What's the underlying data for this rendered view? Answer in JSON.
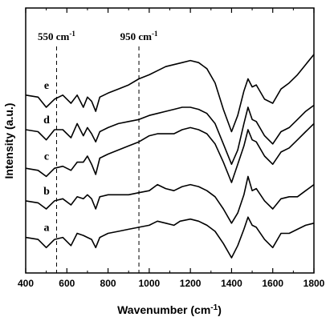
{
  "chart_data": {
    "type": "line",
    "xlabel": "Wavenumber (cm",
    "xlabel_sup": "-1",
    "xlabel_end": ")",
    "ylabel": "Intensity (a.u.)",
    "xlim": [
      400,
      1800
    ],
    "ylim": [
      0,
      100
    ],
    "x_ticks": [
      400,
      600,
      800,
      1000,
      1200,
      1400,
      1600,
      1800
    ],
    "y_ticks_visible": false,
    "grid": false,
    "annotations": [
      {
        "text": "550 cm",
        "sup": "-1",
        "x": 550,
        "style": "dashed-vertical"
      },
      {
        "text": "950 cm",
        "sup": "-1",
        "x": 950,
        "style": "dashed-vertical"
      }
    ],
    "series": [
      {
        "name": "a",
        "points": [
          [
            400,
            10
          ],
          [
            460,
            9
          ],
          [
            500,
            5
          ],
          [
            540,
            9
          ],
          [
            580,
            10
          ],
          [
            620,
            6
          ],
          [
            650,
            12
          ],
          [
            680,
            11
          ],
          [
            700,
            10
          ],
          [
            720,
            9
          ],
          [
            740,
            5
          ],
          [
            760,
            10
          ],
          [
            800,
            12
          ],
          [
            850,
            13
          ],
          [
            900,
            14
          ],
          [
            950,
            15
          ],
          [
            1000,
            16
          ],
          [
            1020,
            17
          ],
          [
            1040,
            18
          ],
          [
            1080,
            17
          ],
          [
            1120,
            16
          ],
          [
            1150,
            18
          ],
          [
            1200,
            19
          ],
          [
            1240,
            18
          ],
          [
            1280,
            16
          ],
          [
            1320,
            13
          ],
          [
            1360,
            7
          ],
          [
            1400,
            0
          ],
          [
            1430,
            6
          ],
          [
            1460,
            14
          ],
          [
            1480,
            20
          ],
          [
            1500,
            16
          ],
          [
            1520,
            15
          ],
          [
            1560,
            9
          ],
          [
            1600,
            5
          ],
          [
            1640,
            12
          ],
          [
            1680,
            12
          ],
          [
            1720,
            14
          ],
          [
            1760,
            16
          ],
          [
            1800,
            17
          ]
        ]
      },
      {
        "name": "b",
        "points": [
          [
            400,
            28
          ],
          [
            460,
            27
          ],
          [
            500,
            24
          ],
          [
            540,
            28
          ],
          [
            580,
            29
          ],
          [
            620,
            26
          ],
          [
            650,
            30
          ],
          [
            680,
            29
          ],
          [
            700,
            31
          ],
          [
            720,
            29
          ],
          [
            740,
            24
          ],
          [
            760,
            30
          ],
          [
            800,
            31
          ],
          [
            850,
            31
          ],
          [
            900,
            31
          ],
          [
            950,
            32
          ],
          [
            1000,
            33
          ],
          [
            1040,
            36
          ],
          [
            1080,
            34
          ],
          [
            1120,
            33
          ],
          [
            1160,
            35
          ],
          [
            1200,
            36
          ],
          [
            1240,
            35
          ],
          [
            1280,
            33
          ],
          [
            1320,
            30
          ],
          [
            1360,
            24
          ],
          [
            1400,
            17
          ],
          [
            1430,
            22
          ],
          [
            1460,
            31
          ],
          [
            1480,
            40
          ],
          [
            1500,
            33
          ],
          [
            1520,
            34
          ],
          [
            1560,
            28
          ],
          [
            1600,
            24
          ],
          [
            1640,
            29
          ],
          [
            1680,
            30
          ],
          [
            1720,
            30
          ],
          [
            1760,
            33
          ],
          [
            1800,
            36
          ]
        ]
      },
      {
        "name": "c",
        "points": [
          [
            400,
            44
          ],
          [
            460,
            43
          ],
          [
            500,
            40
          ],
          [
            540,
            44
          ],
          [
            580,
            45
          ],
          [
            620,
            43
          ],
          [
            650,
            47
          ],
          [
            680,
            47
          ],
          [
            700,
            50
          ],
          [
            720,
            46
          ],
          [
            740,
            41
          ],
          [
            760,
            49
          ],
          [
            800,
            51
          ],
          [
            850,
            53
          ],
          [
            900,
            55
          ],
          [
            950,
            57
          ],
          [
            1000,
            60
          ],
          [
            1040,
            61
          ],
          [
            1080,
            61
          ],
          [
            1120,
            61
          ],
          [
            1160,
            63
          ],
          [
            1200,
            64
          ],
          [
            1240,
            63
          ],
          [
            1280,
            61
          ],
          [
            1320,
            56
          ],
          [
            1360,
            47
          ],
          [
            1400,
            37
          ],
          [
            1430,
            46
          ],
          [
            1460,
            55
          ],
          [
            1480,
            63
          ],
          [
            1500,
            58
          ],
          [
            1520,
            57
          ],
          [
            1560,
            50
          ],
          [
            1600,
            46
          ],
          [
            1640,
            52
          ],
          [
            1680,
            54
          ],
          [
            1720,
            58
          ],
          [
            1760,
            62
          ],
          [
            1800,
            66
          ]
        ]
      },
      {
        "name": "d",
        "points": [
          [
            400,
            63
          ],
          [
            460,
            62
          ],
          [
            500,
            58
          ],
          [
            540,
            63
          ],
          [
            580,
            63
          ],
          [
            620,
            59
          ],
          [
            650,
            66
          ],
          [
            680,
            60
          ],
          [
            700,
            64
          ],
          [
            720,
            61
          ],
          [
            740,
            57
          ],
          [
            760,
            62
          ],
          [
            800,
            64
          ],
          [
            850,
            66
          ],
          [
            900,
            67
          ],
          [
            950,
            68
          ],
          [
            1000,
            70
          ],
          [
            1040,
            71
          ],
          [
            1080,
            72
          ],
          [
            1120,
            73
          ],
          [
            1160,
            74
          ],
          [
            1200,
            74
          ],
          [
            1240,
            73
          ],
          [
            1280,
            71
          ],
          [
            1320,
            66
          ],
          [
            1360,
            56
          ],
          [
            1400,
            46
          ],
          [
            1430,
            53
          ],
          [
            1460,
            66
          ],
          [
            1480,
            74
          ],
          [
            1500,
            68
          ],
          [
            1520,
            67
          ],
          [
            1560,
            60
          ],
          [
            1600,
            56
          ],
          [
            1640,
            62
          ],
          [
            1680,
            64
          ],
          [
            1720,
            68
          ],
          [
            1760,
            72
          ],
          [
            1800,
            75
          ]
        ]
      },
      {
        "name": "e",
        "points": [
          [
            400,
            80
          ],
          [
            460,
            79
          ],
          [
            500,
            74
          ],
          [
            540,
            78
          ],
          [
            580,
            80
          ],
          [
            620,
            76
          ],
          [
            650,
            80
          ],
          [
            680,
            74
          ],
          [
            700,
            79
          ],
          [
            720,
            77
          ],
          [
            740,
            72
          ],
          [
            760,
            79
          ],
          [
            800,
            81
          ],
          [
            850,
            83
          ],
          [
            900,
            85
          ],
          [
            950,
            88
          ],
          [
            1000,
            90
          ],
          [
            1040,
            92
          ],
          [
            1080,
            94
          ],
          [
            1120,
            95
          ],
          [
            1160,
            96
          ],
          [
            1200,
            97
          ],
          [
            1240,
            96
          ],
          [
            1280,
            93
          ],
          [
            1320,
            86
          ],
          [
            1360,
            73
          ],
          [
            1400,
            62
          ],
          [
            1430,
            70
          ],
          [
            1460,
            82
          ],
          [
            1480,
            88
          ],
          [
            1500,
            84
          ],
          [
            1520,
            85
          ],
          [
            1560,
            78
          ],
          [
            1600,
            76
          ],
          [
            1640,
            83
          ],
          [
            1680,
            86
          ],
          [
            1720,
            90
          ],
          [
            1760,
            95
          ],
          [
            1800,
            100
          ]
        ]
      }
    ],
    "curve_labels": [
      {
        "name": "a",
        "y": 10
      },
      {
        "name": "b",
        "y": 28
      },
      {
        "name": "c",
        "y": 45
      },
      {
        "name": "d",
        "y": 63
      },
      {
        "name": "e",
        "y": 80
      }
    ]
  }
}
